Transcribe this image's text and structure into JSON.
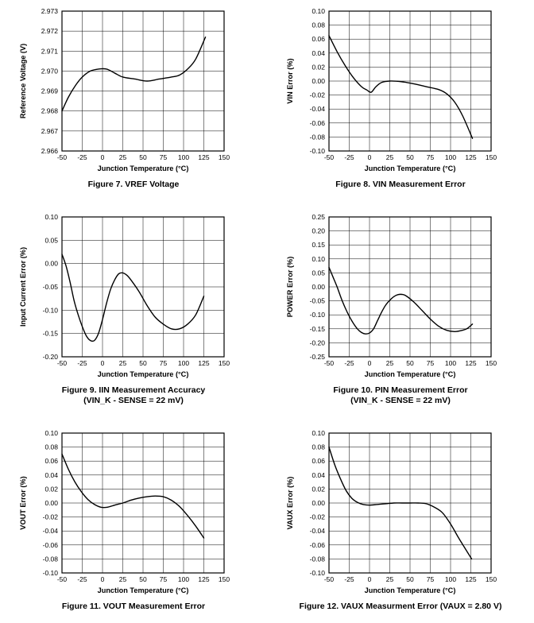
{
  "page": {
    "background": "#ffffff",
    "text_color": "#000000"
  },
  "chart_data": [
    {
      "id": "figure-7",
      "type": "line",
      "caption_lines": [
        "Figure 7. VREF Voltage",
        ""
      ],
      "xlabel": "Junction Temperature  (°C)",
      "ylabel": "Reference Voltage  (V)",
      "xlim": [
        -50,
        150
      ],
      "x_ticks": [
        -50,
        -25,
        0,
        25,
        50,
        75,
        100,
        125,
        150
      ],
      "ylim": [
        2.966,
        2.973
      ],
      "y_ticks": [
        2.966,
        2.967,
        2.968,
        2.969,
        2.97,
        2.971,
        2.972,
        2.973
      ],
      "y_decimals": 3,
      "grid": true,
      "line_color": "#000000",
      "series": [
        {
          "name": "VREF",
          "x": [
            -50,
            -42,
            -33,
            -25,
            -15,
            -5,
            5,
            15,
            25,
            40,
            55,
            70,
            85,
            95,
            105,
            115,
            127
          ],
          "y": [
            2.968,
            2.9687,
            2.9693,
            2.9697,
            2.97,
            2.9701,
            2.9701,
            2.9699,
            2.9697,
            2.9696,
            2.9695,
            2.9696,
            2.9697,
            2.9698,
            2.9701,
            2.9706,
            2.9717
          ]
        }
      ]
    },
    {
      "id": "figure-8",
      "type": "line",
      "caption_lines": [
        "Figure 8. VIN Measurement Error",
        ""
      ],
      "xlabel": "Junction Temperature  (°C)",
      "ylabel": "VIN  Error  (%)",
      "xlim": [
        -50,
        150
      ],
      "x_ticks": [
        -50,
        -25,
        0,
        25,
        50,
        75,
        100,
        125,
        150
      ],
      "ylim": [
        -0.1,
        0.1
      ],
      "y_ticks": [
        -0.1,
        -0.08,
        -0.06,
        -0.04,
        -0.02,
        0.0,
        0.02,
        0.04,
        0.06,
        0.08,
        0.1
      ],
      "y_decimals": 2,
      "grid": true,
      "line_color": "#000000",
      "series": [
        {
          "name": "VIN Error",
          "x": [
            -50,
            -40,
            -30,
            -20,
            -10,
            -3,
            2,
            8,
            15,
            25,
            40,
            55,
            70,
            85,
            95,
            105,
            115,
            127
          ],
          "y": [
            0.065,
            0.042,
            0.022,
            0.005,
            -0.008,
            -0.013,
            -0.016,
            -0.008,
            -0.002,
            0.0,
            -0.001,
            -0.004,
            -0.008,
            -0.012,
            -0.018,
            -0.03,
            -0.05,
            -0.082
          ]
        }
      ]
    },
    {
      "id": "figure-9",
      "type": "line",
      "caption_lines": [
        "Figure 9. IIN Measurement Accuracy",
        "(VIN_K - SENSE = 22 mV)"
      ],
      "xlabel": "Junction Temperature  (°C)",
      "ylabel": "Input Current Error (%)",
      "xlim": [
        -50,
        150
      ],
      "x_ticks": [
        -50,
        -25,
        0,
        25,
        50,
        75,
        100,
        125,
        150
      ],
      "ylim": [
        -0.2,
        0.1
      ],
      "y_ticks": [
        -0.2,
        -0.15,
        -0.1,
        -0.05,
        0.0,
        0.05,
        0.1
      ],
      "y_decimals": 2,
      "grid": true,
      "line_color": "#000000",
      "series": [
        {
          "name": "IIN Error",
          "x": [
            -50,
            -45,
            -40,
            -35,
            -30,
            -25,
            -20,
            -15,
            -10,
            -5,
            0,
            5,
            10,
            15,
            20,
            25,
            30,
            35,
            45,
            55,
            65,
            75,
            85,
            95,
            105,
            115,
            125
          ],
          "y": [
            0.02,
            -0.005,
            -0.04,
            -0.08,
            -0.11,
            -0.135,
            -0.155,
            -0.165,
            -0.165,
            -0.15,
            -0.12,
            -0.085,
            -0.055,
            -0.035,
            -0.022,
            -0.02,
            -0.025,
            -0.035,
            -0.06,
            -0.09,
            -0.115,
            -0.13,
            -0.14,
            -0.14,
            -0.13,
            -0.11,
            -0.07
          ]
        }
      ]
    },
    {
      "id": "figure-10",
      "type": "line",
      "caption_lines": [
        "Figure 10. PIN Measurement Error",
        "(VIN_K - SENSE = 22 mV)"
      ],
      "xlabel": "Junction Temperature  (°C)",
      "ylabel": "POWER Error (%)",
      "xlim": [
        -50,
        150
      ],
      "x_ticks": [
        -50,
        -25,
        0,
        25,
        50,
        75,
        100,
        125,
        150
      ],
      "ylim": [
        -0.25,
        0.25
      ],
      "y_ticks": [
        -0.25,
        -0.2,
        -0.15,
        -0.1,
        -0.05,
        0.0,
        0.05,
        0.1,
        0.15,
        0.2,
        0.25
      ],
      "y_decimals": 2,
      "grid": true,
      "line_color": "#000000",
      "series": [
        {
          "name": "POWER Error",
          "x": [
            -50,
            -45,
            -40,
            -35,
            -30,
            -25,
            -20,
            -15,
            -10,
            -5,
            0,
            5,
            10,
            15,
            20,
            25,
            30,
            35,
            40,
            45,
            55,
            65,
            75,
            85,
            95,
            105,
            115,
            121,
            127
          ],
          "y": [
            0.07,
            0.035,
            0.0,
            -0.04,
            -0.075,
            -0.105,
            -0.13,
            -0.15,
            -0.163,
            -0.168,
            -0.165,
            -0.15,
            -0.12,
            -0.09,
            -0.065,
            -0.048,
            -0.035,
            -0.028,
            -0.027,
            -0.032,
            -0.055,
            -0.085,
            -0.115,
            -0.14,
            -0.155,
            -0.16,
            -0.155,
            -0.148,
            -0.133
          ]
        }
      ]
    },
    {
      "id": "figure-11",
      "type": "line",
      "caption_lines": [
        "Figure 11. VOUT Measurement Error",
        ""
      ],
      "xlabel": "Junction Temperature (°C)",
      "ylabel": "VOUT Error (%)",
      "xlim": [
        -50,
        150
      ],
      "x_ticks": [
        -50,
        -25,
        0,
        25,
        50,
        75,
        100,
        125,
        150
      ],
      "ylim": [
        -0.1,
        0.1
      ],
      "y_ticks": [
        -0.1,
        -0.08,
        -0.06,
        -0.04,
        -0.02,
        0.0,
        0.02,
        0.04,
        0.06,
        0.08,
        0.1
      ],
      "y_decimals": 2,
      "grid": true,
      "line_color": "#000000",
      "series": [
        {
          "name": "VOUT Error",
          "x": [
            -50,
            -42,
            -34,
            -26,
            -18,
            -10,
            -2,
            6,
            15,
            25,
            35,
            45,
            55,
            65,
            75,
            85,
            95,
            105,
            115,
            125
          ],
          "y": [
            0.07,
            0.048,
            0.03,
            0.016,
            0.005,
            -0.002,
            -0.006,
            -0.006,
            -0.003,
            0.0,
            0.004,
            0.007,
            0.009,
            0.01,
            0.009,
            0.004,
            -0.005,
            -0.018,
            -0.033,
            -0.05
          ]
        }
      ]
    },
    {
      "id": "figure-12",
      "type": "line",
      "caption_lines": [
        "Figure 12. VAUX Measurment Error (VAUX = 2.80 V)",
        ""
      ],
      "xlabel": "Junction Temperature (°C)",
      "ylabel": "VAUX Error  (%)",
      "xlim": [
        -50,
        150
      ],
      "x_ticks": [
        -50,
        -25,
        0,
        25,
        50,
        75,
        100,
        125,
        150
      ],
      "ylim": [
        -0.1,
        0.1
      ],
      "y_ticks": [
        -0.1,
        -0.08,
        -0.06,
        -0.04,
        -0.02,
        0.0,
        0.02,
        0.04,
        0.06,
        0.08,
        0.1
      ],
      "y_decimals": 2,
      "grid": true,
      "line_color": "#000000",
      "series": [
        {
          "name": "VAUX Error",
          "x": [
            -50,
            -43,
            -36,
            -29,
            -22,
            -15,
            -8,
            0,
            10,
            20,
            30,
            40,
            50,
            60,
            70,
            80,
            90,
            100,
            110,
            118,
            126
          ],
          "y": [
            0.08,
            0.055,
            0.035,
            0.018,
            0.007,
            0.001,
            -0.002,
            -0.003,
            -0.002,
            -0.001,
            0.0,
            0.0,
            0.0,
            0.0,
            -0.001,
            -0.006,
            -0.014,
            -0.03,
            -0.05,
            -0.065,
            -0.08
          ]
        }
      ]
    }
  ]
}
